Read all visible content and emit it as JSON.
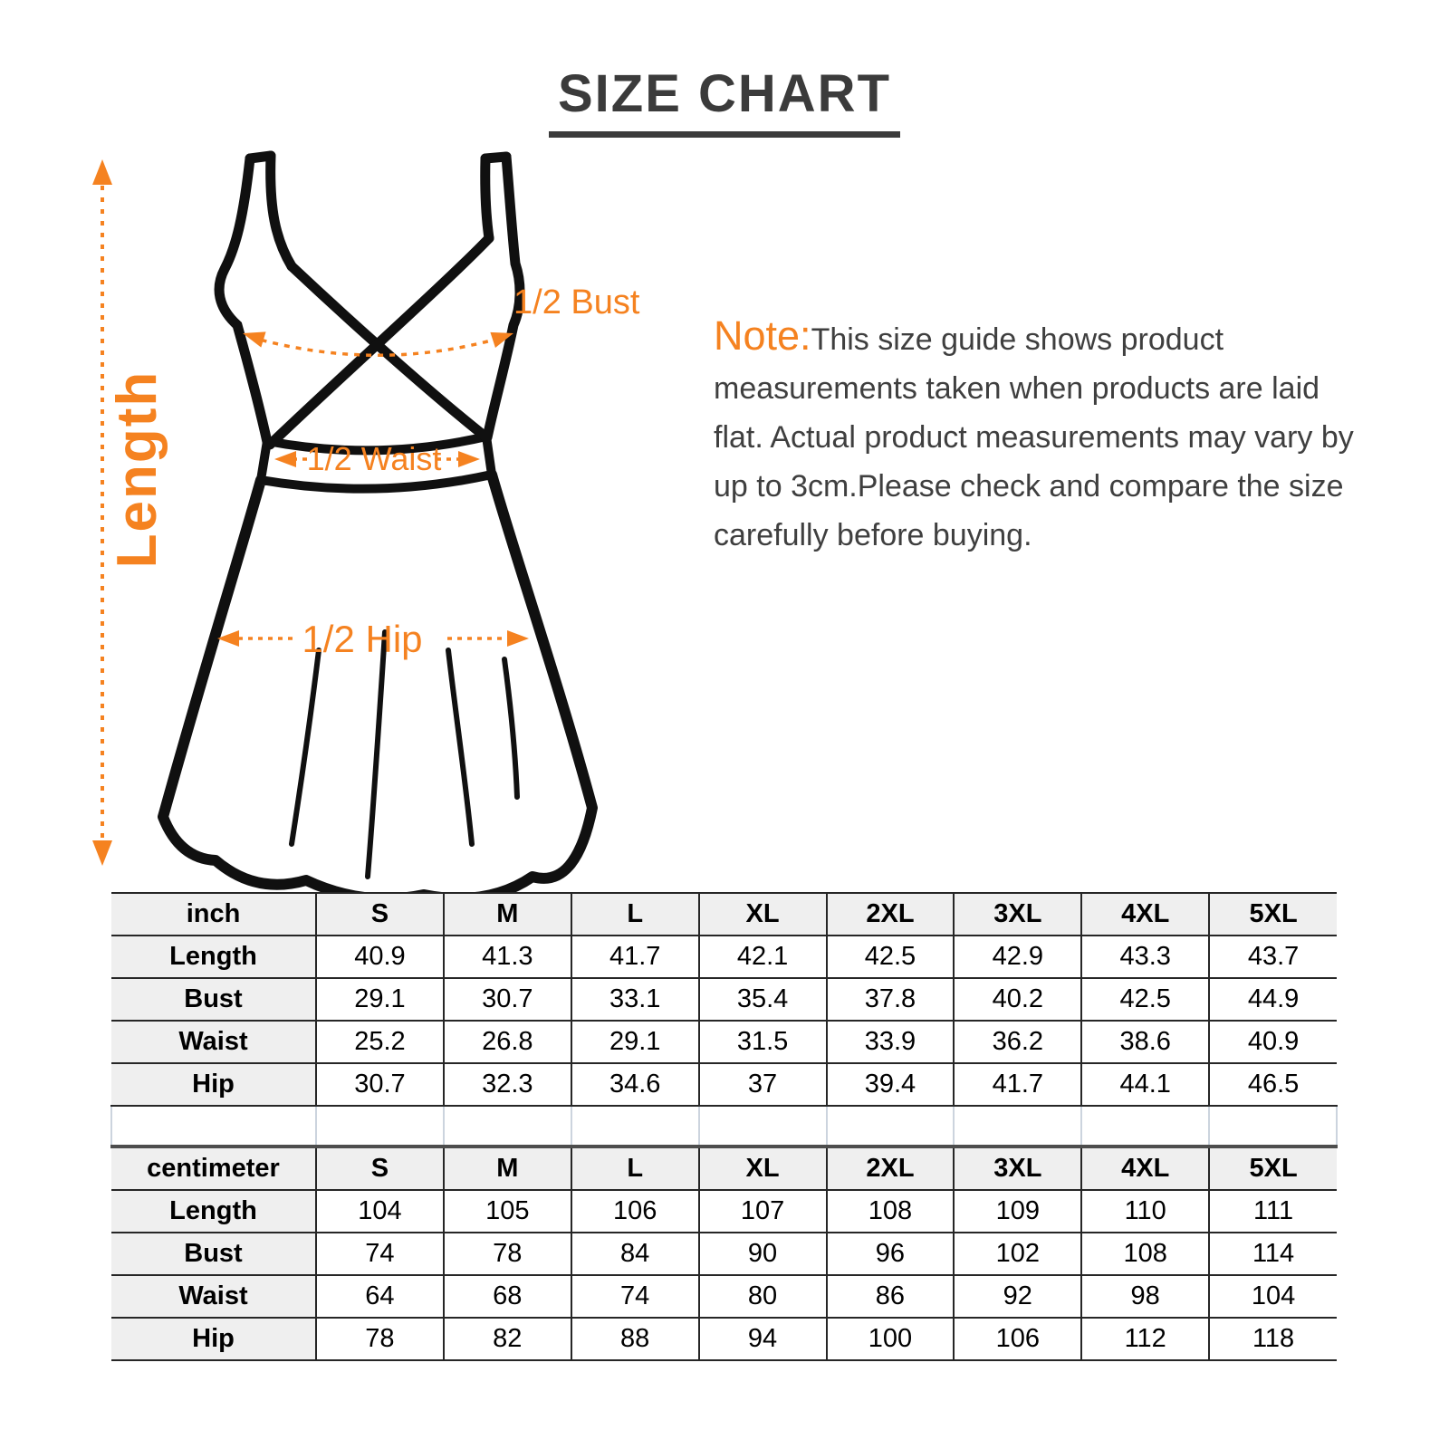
{
  "title": "SIZE CHART",
  "note": {
    "prefix": "Note:",
    "body": "This size guide shows product measurements taken when products are laid flat. Actual product measurements may vary by up to 3cm.Please check and compare the size carefully before buying."
  },
  "diagram": {
    "length_label": "Length",
    "bust_label": "1/2 Bust",
    "waist_label": "1/2 Waist",
    "hip_label": "1/2 Hip"
  },
  "colors": {
    "accent_orange": "#F58220",
    "heading_gray": "#3B3B3B",
    "body_text_gray": "#3F3F3F",
    "table_line": "#262626",
    "spacer_line": "#CCD4DE",
    "header_fill": "#EFEFEF",
    "outline_black": "#101010"
  },
  "chart_data": [
    {
      "type": "table",
      "unit": "inch",
      "columns": [
        "inch",
        "S",
        "M",
        "L",
        "XL",
        "2XL",
        "3XL",
        "4XL",
        "5XL"
      ],
      "rows": [
        [
          "Length",
          "40.9",
          "41.3",
          "41.7",
          "42.1",
          "42.5",
          "42.9",
          "43.3",
          "43.7"
        ],
        [
          "Bust",
          "29.1",
          "30.7",
          "33.1",
          "35.4",
          "37.8",
          "40.2",
          "42.5",
          "44.9"
        ],
        [
          "Waist",
          "25.2",
          "26.8",
          "29.1",
          "31.5",
          "33.9",
          "36.2",
          "38.6",
          "40.9"
        ],
        [
          "Hip",
          "30.7",
          "32.3",
          "34.6",
          "37",
          "39.4",
          "41.7",
          "44.1",
          "46.5"
        ]
      ]
    },
    {
      "type": "table",
      "unit": "centimeter",
      "columns": [
        "centimeter",
        "S",
        "M",
        "L",
        "XL",
        "2XL",
        "3XL",
        "4XL",
        "5XL"
      ],
      "rows": [
        [
          "Length",
          "104",
          "105",
          "106",
          "107",
          "108",
          "109",
          "110",
          "111"
        ],
        [
          "Bust",
          "74",
          "78",
          "84",
          "90",
          "96",
          "102",
          "108",
          "114"
        ],
        [
          "Waist",
          "64",
          "68",
          "74",
          "80",
          "86",
          "92",
          "98",
          "104"
        ],
        [
          "Hip",
          "78",
          "82",
          "88",
          "94",
          "100",
          "106",
          "112",
          "118"
        ]
      ]
    }
  ]
}
